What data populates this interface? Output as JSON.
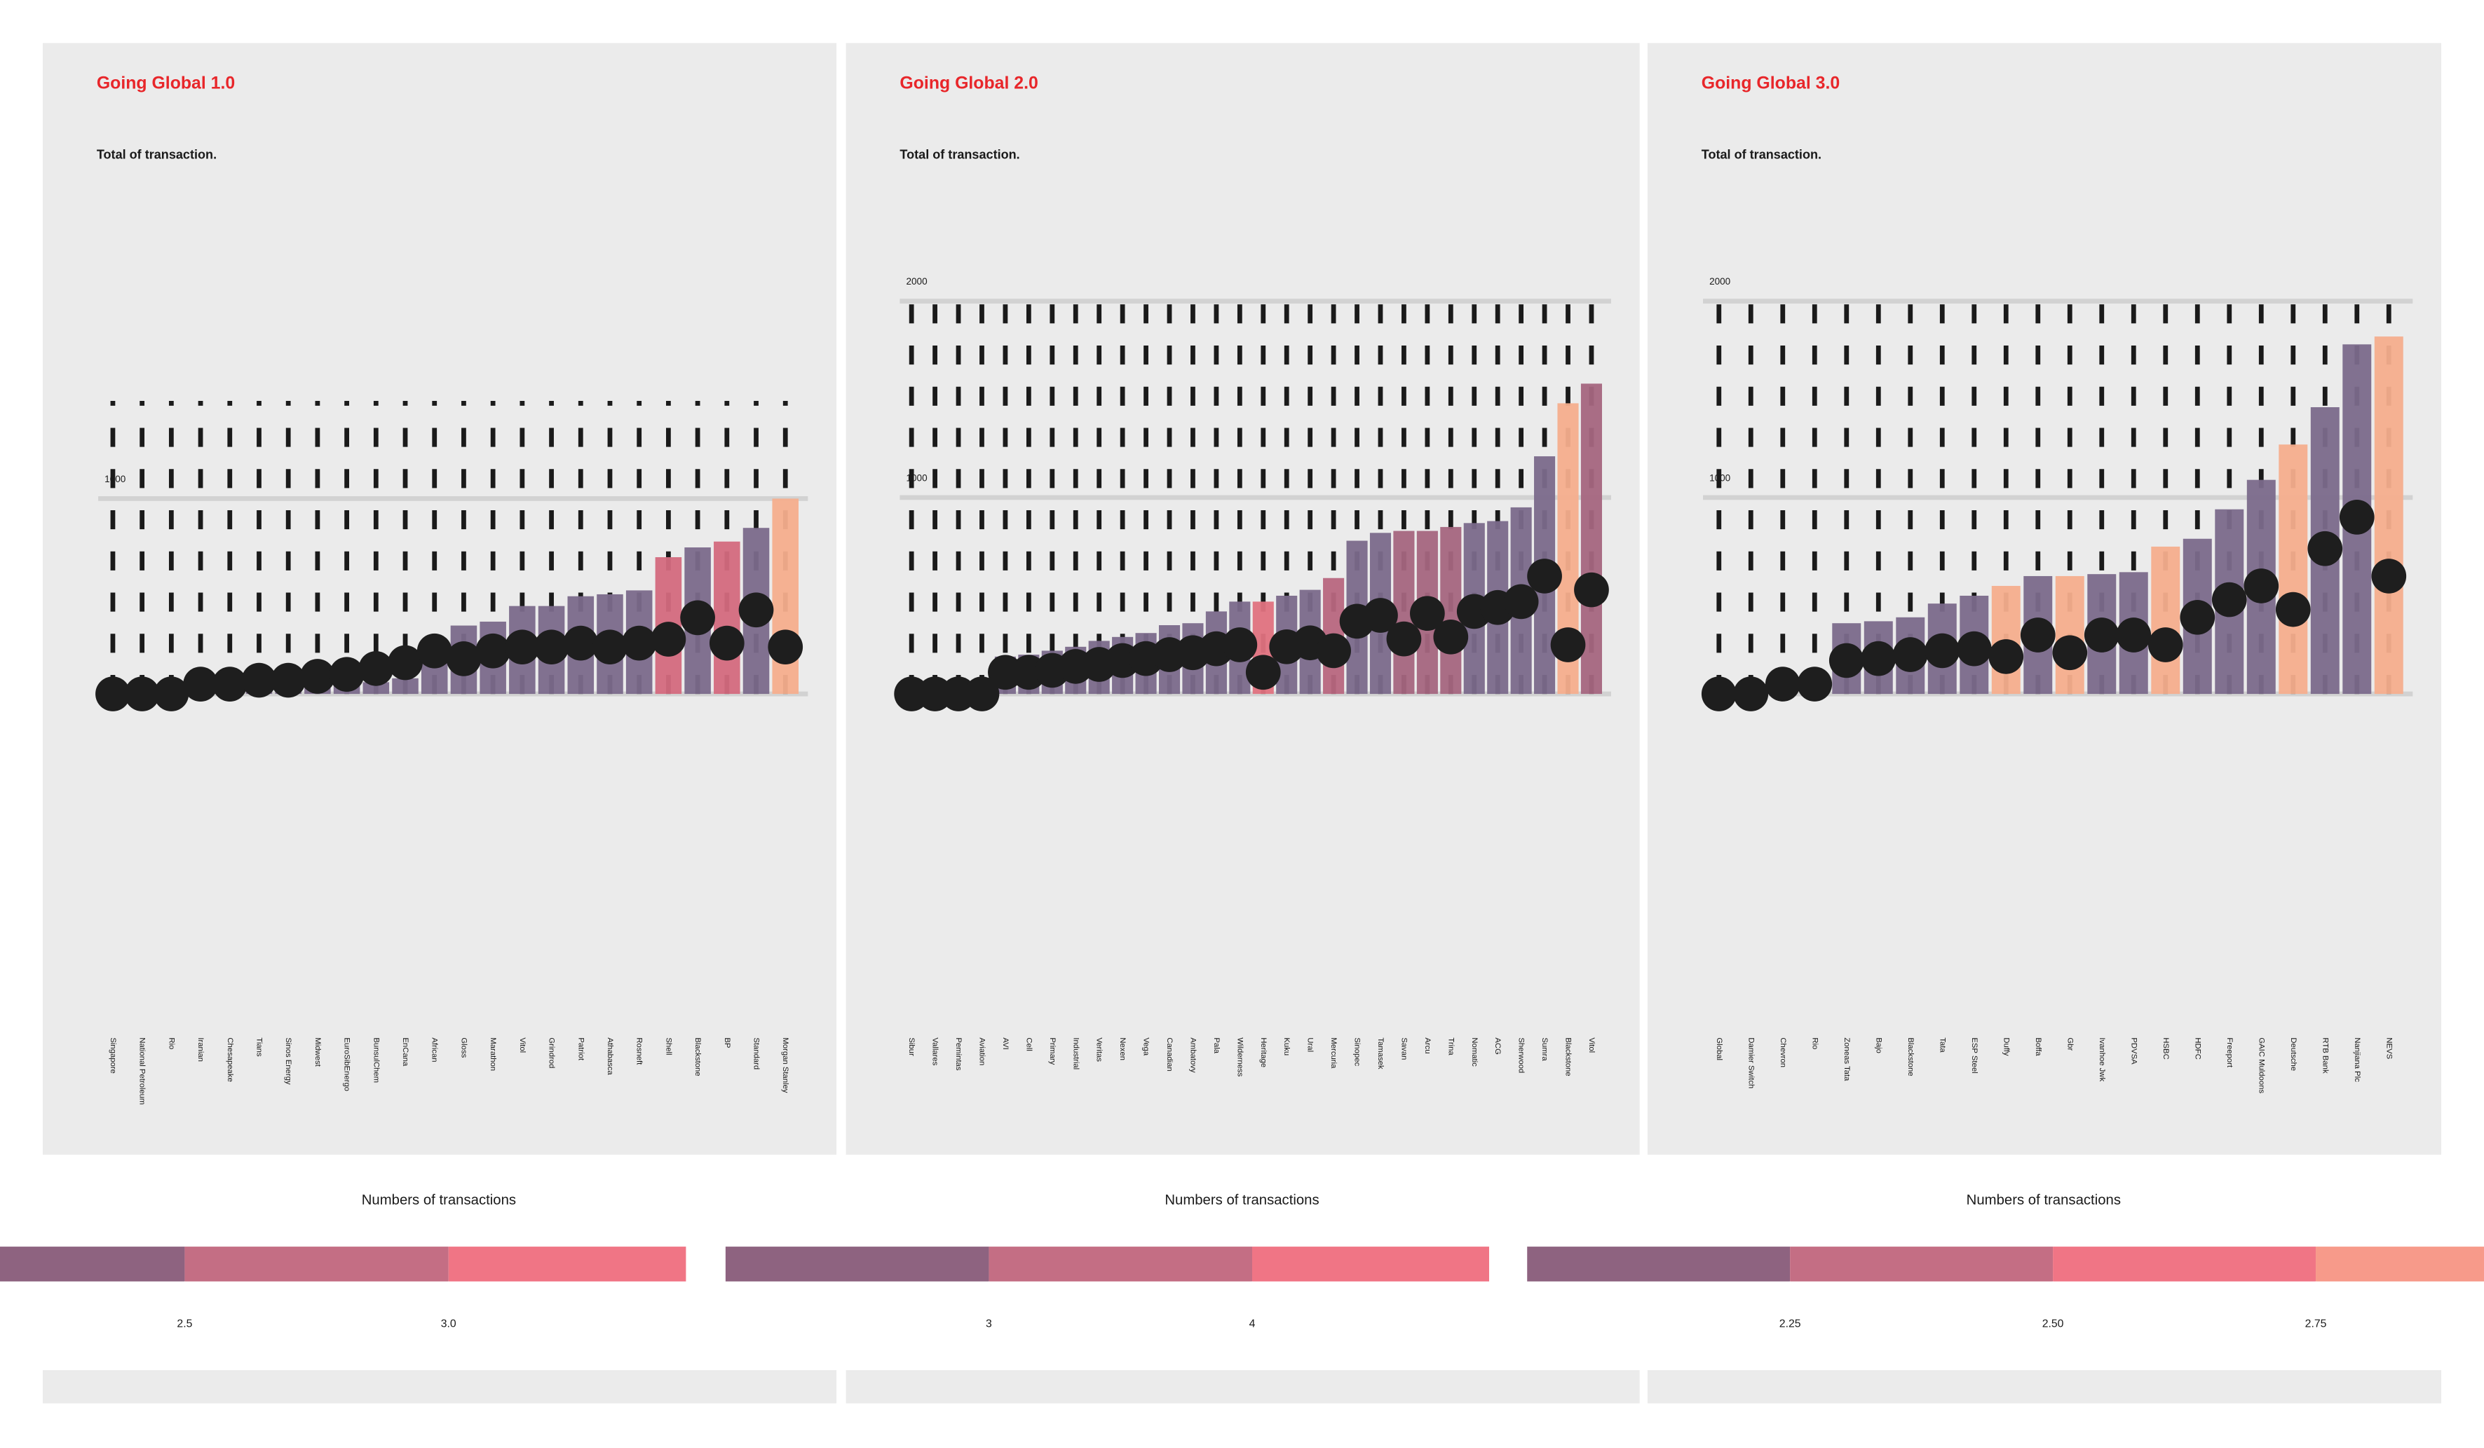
{
  "chart_data": [
    {
      "type": "bar",
      "title": "Going Global 1.0",
      "subtitle": "Total of transaction.",
      "categories": [
        "Singapore",
        "National Petroleum",
        "Rio",
        "Iranian",
        "Chesapeake",
        "Tians",
        "Sinos Energy",
        "Midwest",
        "EuroSibEnergo",
        "BunsulChem",
        "EnCana",
        "African",
        "Gloss",
        "Marathon",
        "Vitol",
        "Grindrod",
        "Patriot",
        "Athabasca",
        "Rosneft",
        "Shell",
        "Blackstone",
        "BP",
        "Standard",
        "Morgan Stanley"
      ],
      "values": [
        0,
        0,
        0,
        10,
        15,
        20,
        25,
        30,
        50,
        60,
        80,
        260,
        350,
        370,
        450,
        450,
        500,
        510,
        530,
        700,
        750,
        780,
        850,
        1000
      ],
      "colors": [
        "#7b6a8b",
        "#7b6a8b",
        "#7b6a8b",
        "#7b6a8b",
        "#7b6a8b",
        "#7b6a8b",
        "#7b6a8b",
        "#7b6a8b",
        "#7b6a8b",
        "#7b6a8b",
        "#7b6a8b",
        "#7b6a8b",
        "#7b6a8b",
        "#7b6a8b",
        "#7b6a8b",
        "#7b6a8b",
        "#7b6a8b",
        "#7b6a8b",
        "#7b6a8b",
        "#d46a7e",
        "#7b6a8b",
        "#d46a7e",
        "#7b6a8b",
        "#f6ae8d"
      ],
      "points": [
        0,
        0,
        0,
        50,
        50,
        70,
        70,
        90,
        100,
        130,
        160,
        220,
        180,
        220,
        240,
        240,
        260,
        240,
        260,
        280,
        390,
        260,
        430,
        240
      ],
      "ylim": [
        0,
        1500
      ],
      "yticks": [
        1000
      ],
      "legend": {
        "title": "Numbers of transactions",
        "colors": [
          "#8e6380",
          "#c46e84",
          "#f07585"
        ],
        "clim": [
          2.15,
          3.45
        ],
        "ticks": [
          2.5,
          {
            "value": 3,
            "label": "3.0"
          }
        ]
      }
    },
    {
      "type": "bar",
      "title": "Going Global 2.0",
      "subtitle": "Total of transaction.",
      "categories": [
        "Sibur",
        "Vallares",
        "Pemintas",
        "Aviation",
        "AVI",
        "Cell",
        "Primary",
        "Industrial",
        "Veritas",
        "Nexen",
        "Vega",
        "Canadian",
        "Ambatovy",
        "Pala",
        "Wilderness",
        "Heritage",
        "Kuku",
        "Ural",
        "Mercuria",
        "Sinopec",
        "Tamasek",
        "Savan",
        "Arcu",
        "Trina",
        "Nomatic",
        "ACG",
        "Sherwood",
        "Sumra",
        "Blackstone",
        "Vitol"
      ],
      "values": [
        0,
        0,
        0,
        0,
        190,
        200,
        220,
        240,
        270,
        290,
        310,
        350,
        360,
        420,
        470,
        470,
        500,
        530,
        590,
        780,
        820,
        830,
        830,
        850,
        870,
        880,
        950,
        1210,
        1480,
        1580
      ],
      "colors": [
        "#7b6a8b",
        "#7b6a8b",
        "#7b6a8b",
        "#7b6a8b",
        "#7b6a8b",
        "#7b6a8b",
        "#7b6a8b",
        "#7b6a8b",
        "#7b6a8b",
        "#7b6a8b",
        "#7b6a8b",
        "#7b6a8b",
        "#7b6a8b",
        "#7b6a8b",
        "#7b6a8b",
        "#e0727f",
        "#7b6a8b",
        "#7b6a8b",
        "#b8677f",
        "#7b6a8b",
        "#7b6a8b",
        "#a5667f",
        "#a5667f",
        "#a5667f",
        "#7b6a8b",
        "#7b6a8b",
        "#7b6a8b",
        "#7b6a8b",
        "#f6ae8d",
        "#a5667f"
      ],
      "points": [
        0,
        0,
        0,
        0,
        110,
        110,
        120,
        140,
        150,
        170,
        180,
        200,
        210,
        230,
        250,
        110,
        240,
        260,
        220,
        370,
        400,
        280,
        410,
        290,
        420,
        440,
        470,
        600,
        250,
        530
      ],
      "ylim": [
        0,
        2000
      ],
      "yticks": [
        1000,
        2000
      ],
      "legend": {
        "title": "Numbers of transactions",
        "colors": [
          "#8e6380",
          "#c46e84",
          "#f07585"
        ],
        "clim": [
          2,
          4.9
        ],
        "ticks": [
          3,
          4
        ]
      }
    },
    {
      "type": "bar",
      "title": "Going Global 3.0",
      "subtitle": "Total of transaction.",
      "categories": [
        "Global",
        "Damier Switch",
        "Chevron",
        "Rio",
        "Zoneas Tata",
        "Bajo",
        "Blackstone",
        "Tata",
        "ESP Steel",
        "Duffy",
        "Boffa",
        "Gbr",
        "Ivanhoe Jwk",
        "PDVSA",
        "HSBC",
        "HDFC",
        "Freeport",
        "GAIC Muldoons",
        "Deutsche",
        "RTB Bank",
        "Nanjiana Plc",
        "NEVS"
      ],
      "values": [
        0,
        0,
        0,
        0,
        360,
        370,
        390,
        460,
        500,
        550,
        600,
        600,
        610,
        620,
        750,
        790,
        940,
        1090,
        1270,
        1460,
        1780,
        1820
      ],
      "colors": [
        "#7b6a8b",
        "#7b6a8b",
        "#7b6a8b",
        "#7b6a8b",
        "#7b6a8b",
        "#7b6a8b",
        "#7b6a8b",
        "#7b6a8b",
        "#7b6a8b",
        "#f6ae8d",
        "#7b6a8b",
        "#f6ae8d",
        "#7b6a8b",
        "#7b6a8b",
        "#f6ae8d",
        "#7b6a8b",
        "#7b6a8b",
        "#7b6a8b",
        "#f6ae8d",
        "#7b6a8b",
        "#7b6a8b",
        "#f6ae8d"
      ],
      "points": [
        0,
        0,
        50,
        50,
        170,
        180,
        200,
        220,
        230,
        190,
        300,
        210,
        300,
        300,
        250,
        390,
        480,
        550,
        430,
        740,
        900,
        600
      ],
      "ylim": [
        0,
        2000
      ],
      "yticks": [
        1000,
        2000
      ],
      "legend": {
        "title": "Numbers of transactions",
        "colors": [
          "#8e6380",
          "#c46e84",
          "#f07585",
          "#f79a8a"
        ],
        "clim": [
          2,
          2.91
        ],
        "ticks": [
          2.25,
          {
            "value": 2.5,
            "label": "2.50"
          },
          2.75
        ]
      }
    }
  ]
}
